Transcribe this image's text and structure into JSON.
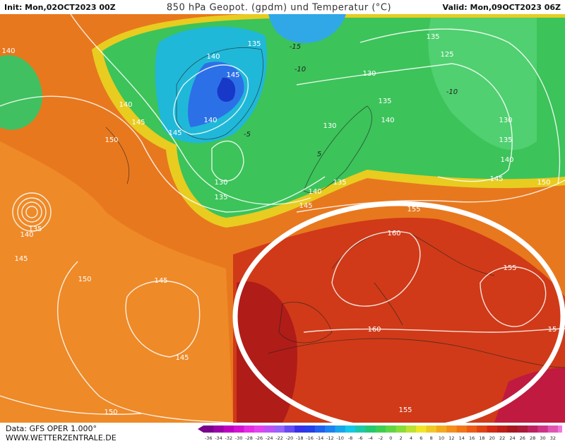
{
  "header": {
    "init": "Init: Mon,02OCT2023 00Z",
    "title": "850 hPa Geopot. (gpdm) und Temperatur (°C)",
    "valid": "Valid: Mon,09OCT2023 06Z"
  },
  "footer": {
    "source": "Data: GFS OPER 1.000°",
    "site": "WWW.WETTERZENTRALE.DE"
  },
  "colorbar": {
    "labels": [
      -36,
      -34,
      -32,
      -30,
      -28,
      -26,
      -24,
      -22,
      -20,
      -18,
      -16,
      -14,
      -12,
      -10,
      -8,
      -6,
      -4,
      -2,
      0,
      2,
      4,
      6,
      8,
      10,
      12,
      14,
      16,
      18,
      20,
      22,
      24,
      26,
      28,
      30,
      32
    ]
  },
  "geopotential_labels": [
    135,
    140,
    145,
    140,
    145,
    130,
    135,
    140,
    145,
    135,
    130,
    135,
    140,
    130,
    125,
    135,
    130,
    135,
    140,
    145,
    150,
    155,
    160,
    155,
    160,
    15,
    150,
    145,
    145,
    150,
    155,
    150,
    145,
    140,
    140,
    140,
    135,
    145
  ],
  "temperature_labels": [
    -15,
    -10,
    -5,
    5,
    -10
  ]
}
